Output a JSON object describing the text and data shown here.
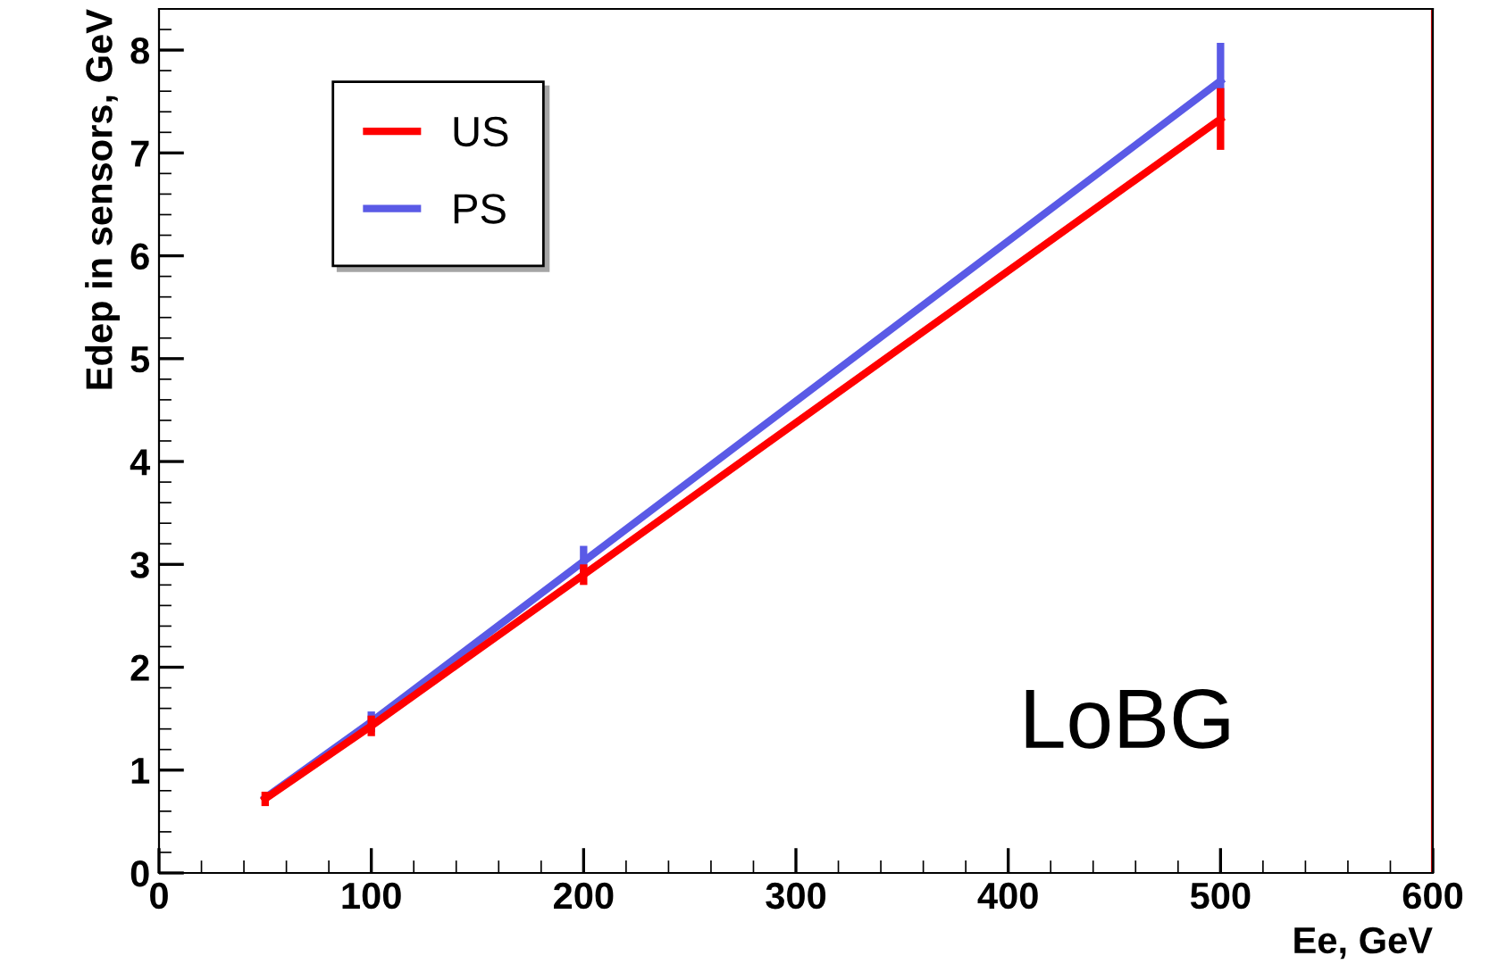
{
  "chart_data": {
    "type": "line",
    "xlabel": "Ee, GeV",
    "ylabel": "Edep in sensors, GeV",
    "x": [
      50,
      100,
      200,
      500
    ],
    "series": [
      {
        "name": "US",
        "color": "#ff0000",
        "values": [
          0.72,
          1.43,
          2.9,
          7.33
        ],
        "errors": [
          0.07,
          0.1,
          0.1,
          0.3
        ]
      },
      {
        "name": "PS",
        "color": "#5a5ae6",
        "values": [
          0.73,
          1.47,
          3.03,
          7.7
        ],
        "errors": [
          null,
          0.1,
          0.15,
          0.37
        ]
      }
    ],
    "xlim": [
      0,
      600
    ],
    "ylim": [
      0,
      8.4
    ],
    "xticks": [
      0,
      100,
      200,
      300,
      400,
      500,
      600
    ],
    "yticks": [
      0,
      1,
      2,
      3,
      4,
      5,
      6,
      7,
      8
    ],
    "ref_lines": [
      {
        "axis": "x",
        "value": 600,
        "color": "#cc0000"
      }
    ],
    "annotations": [
      "LoBG"
    ],
    "legend": "top left",
    "grid": false,
    "marker": "none",
    "line_style": "solid"
  }
}
